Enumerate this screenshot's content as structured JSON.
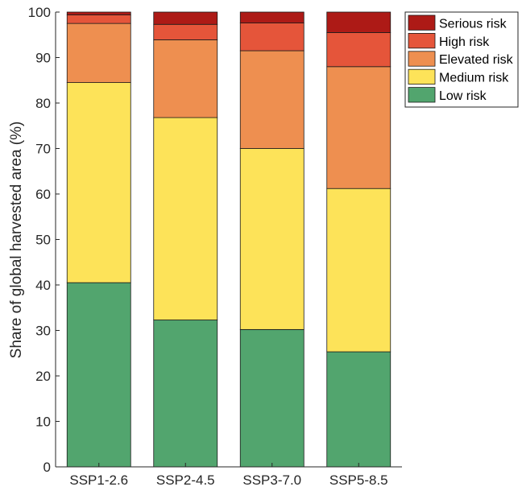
{
  "chart_data": {
    "type": "bar",
    "stacked": true,
    "categories": [
      "SSP1-2.6",
      "SSP2-4.5",
      "SSP3-7.0",
      "SSP5-8.5"
    ],
    "ylabel": "Share of global harvested area (%)",
    "xlabel": "",
    "ylim": [
      0,
      100
    ],
    "yticks": [
      0,
      10,
      20,
      30,
      40,
      50,
      60,
      70,
      80,
      90,
      100
    ],
    "grid": false,
    "legend_position": "top-right, outside plot",
    "series": [
      {
        "name": "Low risk",
        "color": "#52a56e",
        "values": [
          40.5,
          32.3,
          30.2,
          25.3
        ]
      },
      {
        "name": "Medium risk",
        "color": "#fde359",
        "values": [
          44.0,
          44.5,
          39.8,
          35.9
        ]
      },
      {
        "name": "Elevated risk",
        "color": "#ee8f50",
        "values": [
          13.0,
          17.1,
          21.5,
          26.8
        ]
      },
      {
        "name": "High risk",
        "color": "#e5553a",
        "values": [
          1.9,
          3.4,
          6.1,
          7.5
        ]
      },
      {
        "name": "Serious risk",
        "color": "#ad1a16",
        "values": [
          0.6,
          2.7,
          2.4,
          4.5
        ]
      }
    ]
  }
}
